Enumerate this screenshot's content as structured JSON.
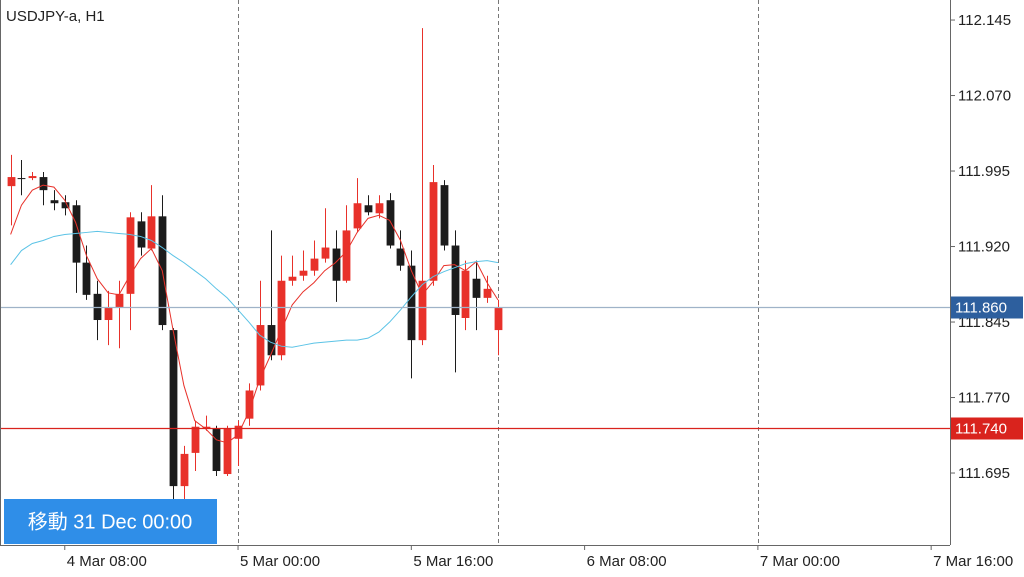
{
  "chart_data": {
    "type": "candlestick",
    "title": "USDJPY-a, H1",
    "x": [
      3,
      4,
      5,
      6,
      7,
      8,
      9,
      10,
      11,
      12,
      13,
      14,
      15,
      16,
      17,
      18,
      19,
      20,
      21,
      22,
      23,
      24,
      25,
      26,
      27,
      28,
      29,
      30,
      31,
      32,
      33,
      34,
      35,
      36,
      37,
      38,
      39,
      40,
      41,
      42,
      43,
      44,
      45,
      46,
      47,
      48
    ],
    "open": [
      111.98,
      111.988,
      111.988,
      111.989,
      111.966,
      111.964,
      111.961,
      111.904,
      111.873,
      111.847,
      111.859,
      111.873,
      111.945,
      111.918,
      111.95,
      111.837,
      111.682,
      111.715,
      111.739,
      111.739,
      111.694,
      111.729,
      111.749,
      111.782,
      111.842,
      111.812,
      111.886,
      111.891,
      111.896,
      111.908,
      111.918,
      111.886,
      111.938,
      111.961,
      111.953,
      111.966,
      111.918,
      111.901,
      111.827,
      111.886,
      111.981,
      111.921,
      111.849,
      111.888,
      111.869,
      111.837
    ],
    "high": [
      112.011,
      112.006,
      111.994,
      111.994,
      111.976,
      111.971,
      111.966,
      111.921,
      111.886,
      111.876,
      111.886,
      111.954,
      111.954,
      111.981,
      111.971,
      111.839,
      111.722,
      111.747,
      111.752,
      111.742,
      111.742,
      111.747,
      111.784,
      111.886,
      111.936,
      111.911,
      111.911,
      111.916,
      111.926,
      111.958,
      111.936,
      111.961,
      111.988,
      111.971,
      111.971,
      111.973,
      111.936,
      111.916,
      112.137,
      112.001,
      111.986,
      111.936,
      111.906,
      111.906,
      111.891,
      111.867
    ],
    "low": [
      111.941,
      111.971,
      111.986,
      111.961,
      111.956,
      111.951,
      111.874,
      111.867,
      111.827,
      111.822,
      111.819,
      111.837,
      111.911,
      111.916,
      111.837,
      111.667,
      111.667,
      111.697,
      111.737,
      111.692,
      111.692,
      111.702,
      111.742,
      111.777,
      111.807,
      111.807,
      111.881,
      111.886,
      111.891,
      111.904,
      111.865,
      111.884,
      111.934,
      111.951,
      111.948,
      111.918,
      111.896,
      111.789,
      111.822,
      111.881,
      111.916,
      111.795,
      111.837,
      111.837,
      111.864,
      111.812
    ],
    "close": [
      111.989,
      111.987,
      111.99,
      111.976,
      111.963,
      111.958,
      111.904,
      111.872,
      111.847,
      111.859,
      111.873,
      111.949,
      111.919,
      111.95,
      111.842,
      111.682,
      111.714,
      111.741,
      111.741,
      111.697,
      111.739,
      111.742,
      111.777,
      111.842,
      111.812,
      111.886,
      111.89,
      111.896,
      111.908,
      111.919,
      111.886,
      111.936,
      111.963,
      111.954,
      111.963,
      111.921,
      111.901,
      111.827,
      111.886,
      111.984,
      111.921,
      111.852,
      111.896,
      111.869,
      111.878,
      111.859
    ],
    "up_color": "#e8312a",
    "down_color": "#1c1c1c",
    "lines": [
      {
        "color": "#e8312a",
        "values": [
          111.932,
          111.961,
          111.976,
          111.981,
          111.979,
          111.966,
          111.944,
          111.911,
          111.888,
          111.874,
          111.872,
          111.891,
          111.908,
          111.918,
          111.896,
          111.837,
          111.782,
          111.747,
          111.739,
          111.728,
          111.725,
          111.733,
          111.756,
          111.788,
          111.812,
          111.837,
          111.862,
          111.875,
          111.884,
          111.896,
          111.904,
          111.915,
          111.934,
          111.948,
          111.951,
          111.946,
          111.926,
          111.896,
          111.872,
          111.885,
          111.901,
          111.902,
          111.896,
          111.905,
          111.884,
          111.867
        ]
      },
      {
        "color": "#5bc3e6",
        "values": [
          111.902,
          111.916,
          111.923,
          111.926,
          111.93,
          111.932,
          111.933,
          111.934,
          111.935,
          111.934,
          111.933,
          111.932,
          111.93,
          111.926,
          111.919,
          111.911,
          111.904,
          111.896,
          111.888,
          111.878,
          111.869,
          111.857,
          111.845,
          111.832,
          111.825,
          111.821,
          111.82,
          111.822,
          111.824,
          111.825,
          111.826,
          111.827,
          111.827,
          111.829,
          111.835,
          111.845,
          111.857,
          111.87,
          111.882,
          111.89,
          111.895,
          111.899,
          111.903,
          111.905,
          111.906,
          111.904
        ]
      }
    ],
    "xlim": [
      2.02,
      89.74
    ],
    "ylim": [
      111.6235,
      112.1649
    ],
    "xticks": [
      {
        "value": 8,
        "label": "4 Mar 08:00"
      },
      {
        "value": 24,
        "label": "5 Mar 00:00"
      },
      {
        "value": 40,
        "label": "5 Mar 16:00"
      },
      {
        "value": 56,
        "label": "6 Mar 08:00"
      },
      {
        "value": 72,
        "label": "7 Mar 00:00"
      },
      {
        "value": 88,
        "label": "7 Mar 16:00"
      }
    ],
    "yticks": [
      {
        "value": 112.145,
        "label": "112.145"
      },
      {
        "value": 112.07,
        "label": "112.070"
      },
      {
        "value": 111.995,
        "label": "111.995"
      },
      {
        "value": 111.92,
        "label": "111.920"
      },
      {
        "value": 111.845,
        "label": "111.845"
      },
      {
        "value": 111.77,
        "label": "111.770"
      },
      {
        "value": 111.695,
        "label": "111.695"
      }
    ],
    "period_separators": [
      24,
      48,
      72
    ],
    "price_lines": [
      {
        "value": 111.86,
        "label": "111.860",
        "color": "#2d5f9e",
        "line_color": "#9fb3c8"
      },
      {
        "value": 111.74,
        "label": "111.740",
        "color": "#d9231d",
        "line_color": "#d9231d"
      }
    ],
    "nav_label": "移動 31 Dec 00:00"
  }
}
